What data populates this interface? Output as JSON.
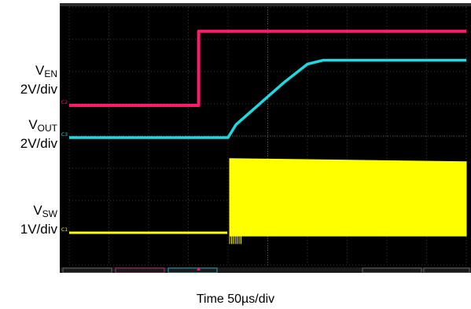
{
  "chart_data": {
    "type": "line",
    "title": "",
    "xlabel": "Time 50µs/div",
    "xlim": [
      0,
      500
    ],
    "x_units": "µs",
    "grid": true,
    "background": "#000000",
    "series": [
      {
        "name": "V",
        "name_sub": "EN",
        "scale": "2V/div",
        "channel_marker": "C2",
        "color": "#ff1a6e",
        "x": [
          0,
          163,
          163,
          500
        ],
        "y_div": [
          0,
          0,
          2.3,
          2.3
        ],
        "offset_div": 0
      },
      {
        "name": "V",
        "name_sub": "OUT",
        "scale": "2V/div",
        "channel_marker": "C3",
        "color": "#1fd8e0",
        "x": [
          0,
          200,
          210,
          240,
          270,
          300,
          320,
          500
        ],
        "y_div": [
          0,
          0,
          0.4,
          1.05,
          1.7,
          2.28,
          2.4,
          2.4
        ],
        "offset_div": 0
      },
      {
        "name": "V",
        "name_sub": "SW",
        "scale": "1V/div",
        "channel_marker": "C1",
        "color": "#ffff00",
        "x": [
          0,
          199,
          202,
          500
        ],
        "y_low_div": [
          0,
          0,
          -0.1,
          -0.1
        ],
        "y_high_div": [
          0,
          0,
          2.3,
          2.2
        ],
        "offset_div": 0
      }
    ],
    "trigger_marker_x": 163
  }
}
